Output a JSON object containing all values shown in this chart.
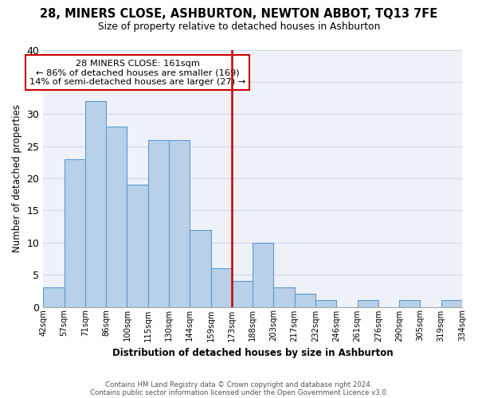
{
  "title": "28, MINERS CLOSE, ASHBURTON, NEWTON ABBOT, TQ13 7FE",
  "subtitle": "Size of property relative to detached houses in Ashburton",
  "xlabel": "Distribution of detached houses by size in Ashburton",
  "ylabel": "Number of detached properties",
  "bin_labels": [
    "42sqm",
    "57sqm",
    "71sqm",
    "86sqm",
    "100sqm",
    "115sqm",
    "130sqm",
    "144sqm",
    "159sqm",
    "173sqm",
    "188sqm",
    "203sqm",
    "217sqm",
    "232sqm",
    "246sqm",
    "261sqm",
    "276sqm",
    "290sqm",
    "305sqm",
    "319sqm",
    "334sqm"
  ],
  "bar_values": [
    3,
    23,
    32,
    28,
    19,
    26,
    26,
    12,
    6,
    4,
    10,
    3,
    2,
    1,
    0,
    1,
    0,
    1,
    0,
    1
  ],
  "bar_color": "#b8d0e8",
  "bar_edge_color": "#5b9bd5",
  "vline_pos": 9.0,
  "vline_color": "#cc0000",
  "annotation_text": "28 MINERS CLOSE: 161sqm\n← 86% of detached houses are smaller (169)\n14% of semi-detached houses are larger (27) →",
  "annotation_box_color": "#ffffff",
  "annotation_box_edge": "#cc0000",
  "ylim": [
    0,
    40
  ],
  "yticks": [
    0,
    5,
    10,
    15,
    20,
    25,
    30,
    35,
    40
  ],
  "grid_color": "#d0d8e8",
  "bg_color": "#eef2f8",
  "footer1": "Contains HM Land Registry data © Crown copyright and database right 2024.",
  "footer2": "Contains public sector information licensed under the Open Government Licence v3.0."
}
